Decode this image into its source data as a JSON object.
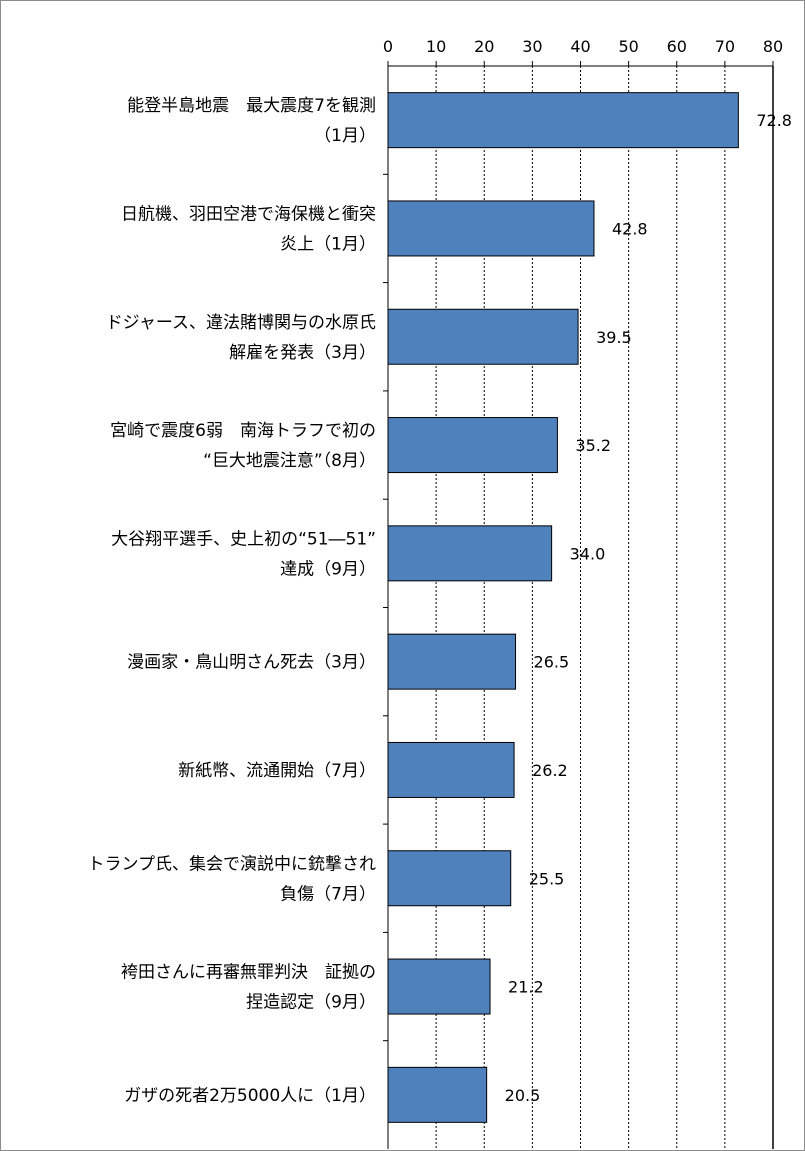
{
  "chart_data": {
    "type": "bar",
    "orientation": "horizontal",
    "title": "",
    "xlabel": "",
    "ylabel": "",
    "xlim": [
      0,
      80
    ],
    "ticks": [
      0,
      10,
      20,
      30,
      40,
      50,
      60,
      70,
      80
    ],
    "grid": true,
    "legend": "none",
    "bar_color": "#4f81bd",
    "categories": [
      {
        "lines": [
          "能登半島地震　最大震度7を観測",
          "（1月）"
        ],
        "value": 72.8,
        "label": "72.8"
      },
      {
        "lines": [
          "日航機、羽田空港で海保機と衝突",
          "炎上（1月）"
        ],
        "value": 42.8,
        "label": "42.8"
      },
      {
        "lines": [
          "ドジャース、違法賭博関与の水原氏",
          "解雇を発表（3月）"
        ],
        "value": 39.5,
        "label": "39.5"
      },
      {
        "lines": [
          "宮崎で震度6弱　南海トラフで初の",
          "“巨大地震注意”（8月）"
        ],
        "value": 35.2,
        "label": "35.2"
      },
      {
        "lines": [
          "大谷翔平選手、史上初の“51―51”",
          "達成（9月）"
        ],
        "value": 34.0,
        "label": "34.0"
      },
      {
        "lines": [
          "漫画家・鳥山明さん死去（3月）"
        ],
        "value": 26.5,
        "label": "26.5"
      },
      {
        "lines": [
          "新紙幣、流通開始（7月）"
        ],
        "value": 26.2,
        "label": "26.2"
      },
      {
        "lines": [
          "トランプ氏、集会で演説中に銃撃され",
          "負傷（7月）"
        ],
        "value": 25.5,
        "label": "25.5"
      },
      {
        "lines": [
          "袴田さんに再審無罪判決　証拠の",
          "捏造認定（9月）"
        ],
        "value": 21.2,
        "label": "21.2"
      },
      {
        "lines": [
          "ガザの死者2万5000人に（1月）"
        ],
        "value": 20.5,
        "label": "20.5"
      }
    ]
  }
}
